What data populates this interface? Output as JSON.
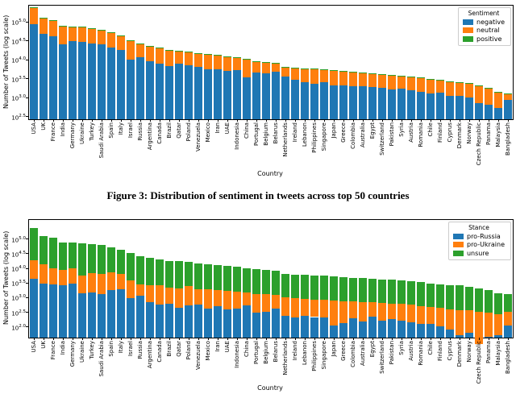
{
  "caption": "Figure 3: Distribution of sentiment in tweets across top 50 countries",
  "colors": {
    "blue": "#1f77b4",
    "orange": "#ff7f0e",
    "green": "#2ca02c"
  },
  "countries": [
    "USA",
    "UK",
    "France",
    "India",
    "Germany",
    "Ukraine",
    "Turkey",
    "Saudi Arabia",
    "Spain",
    "Italy",
    "Israel",
    "Russia",
    "Argentina",
    "Canada",
    "Brazil",
    "Qatar",
    "Poland",
    "Venezuela",
    "Mexico",
    "Iran",
    "UAE",
    "Indonesia",
    "China",
    "Portugal",
    "Belgium",
    "Belarus",
    "Netherlands",
    "Ireland",
    "Lebanon",
    "Philippines",
    "Singapore",
    "Japan",
    "Greece",
    "Colombia",
    "Australia",
    "Egypt",
    "Switzerland",
    "Pakistan",
    "Syria",
    "Austria",
    "Romania",
    "Chile",
    "Finland",
    "Cyprus",
    "Denmark",
    "Norway",
    "Czech Republic",
    "Panama",
    "Malaysia",
    "Bangladesh"
  ],
  "chart_data": [
    {
      "type": "bar",
      "stacked": true,
      "yscale": "log",
      "xlabel": "Country",
      "ylabel": "Number of Tweets (log scale)",
      "legend_title": "Sentiment",
      "legend_position": "upper right",
      "grid": false,
      "ylim_log10": [
        2.42,
        5.42
      ],
      "yticks_log10": [
        5.0,
        4.5,
        4.0,
        3.5,
        3.0,
        2.5
      ],
      "categories": [
        "USA",
        "UK",
        "France",
        "India",
        "Germany",
        "Ukraine",
        "Turkey",
        "Saudi Arabia",
        "Spain",
        "Italy",
        "Israel",
        "Russia",
        "Argentina",
        "Canada",
        "Brazil",
        "Qatar",
        "Poland",
        "Venezuela",
        "Mexico",
        "Iran",
        "UAE",
        "Indonesia",
        "China",
        "Portugal",
        "Belgium",
        "Belarus",
        "Netherlands",
        "Ireland",
        "Lebanon",
        "Philippines",
        "Singapore",
        "Japan",
        "Greece",
        "Colombia",
        "Australia",
        "Egypt",
        "Switzerland",
        "Pakistan",
        "Syria",
        "Austria",
        "Romania",
        "Chile",
        "Finland",
        "Cyprus",
        "Denmark",
        "Norway",
        "Czech Republic",
        "Panama",
        "Malaysia",
        "Bangladesh"
      ],
      "series": [
        {
          "name": "negative",
          "color": "#1f77b4",
          "values": [
            85000,
            47000,
            40000,
            24500,
            31000,
            29000,
            26000,
            25000,
            21000,
            18000,
            10000,
            11500,
            8900,
            7600,
            6600,
            7800,
            6900,
            6300,
            5600,
            5600,
            4900,
            5100,
            3300,
            4400,
            4200,
            4700,
            3600,
            2900,
            2500,
            2300,
            2500,
            2100,
            2100,
            2000,
            1950,
            1850,
            1750,
            1600,
            1700,
            1500,
            1400,
            1260,
            1300,
            1100,
            1100,
            1000,
            700,
            630,
            520,
            850
          ]
        },
        {
          "name": "neutral",
          "color": "#ff7f0e",
          "values": [
            150000,
            76500,
            64900,
            50000,
            39600,
            40600,
            38700,
            33800,
            30000,
            24100,
            21400,
            14000,
            13050,
            12000,
            10840,
            8870,
            8590,
            7910,
            7630,
            7040,
            6570,
            6070,
            6500,
            4320,
            4130,
            3040,
            2480,
            2960,
            3180,
            3180,
            2790,
            2990,
            2800,
            2600,
            2460,
            2360,
            2270,
            2220,
            1930,
            1930,
            1830,
            1680,
            1440,
            1450,
            1350,
            1250,
            1260,
            1110,
            850,
            380
          ]
        },
        {
          "name": "positive",
          "color": "#2ca02c",
          "values": [
            5000,
            2500,
            2100,
            1500,
            1400,
            1400,
            1300,
            1200,
            1000,
            900,
            600,
            500,
            450,
            400,
            360,
            330,
            310,
            290,
            270,
            260,
            230,
            230,
            200,
            180,
            170,
            160,
            120,
            140,
            120,
            120,
            110,
            110,
            100,
            100,
            90,
            90,
            80,
            80,
            70,
            70,
            70,
            60,
            60,
            50,
            50,
            50,
            40,
            40,
            30,
            30
          ]
        }
      ]
    },
    {
      "type": "bar",
      "stacked": true,
      "yscale": "log",
      "xlabel": "Country",
      "ylabel": "Number of Tweets (log scale)",
      "legend_title": "Stance",
      "legend_position": "upper right",
      "grid": false,
      "ylim_log10": [
        1.62,
        5.64
      ],
      "yticks_log10": [
        5.0,
        4.5,
        4.0,
        3.5,
        3.0,
        2.5,
        2.0
      ],
      "categories": [
        "USA",
        "UK",
        "France",
        "India",
        "Germany",
        "Ukraine",
        "Turkey",
        "Saudi Arabia",
        "Spain",
        "Italy",
        "Israel",
        "Russia",
        "Argentina",
        "Canada",
        "Brazil",
        "Qatar",
        "Poland",
        "Venezuela",
        "Mexico",
        "Iran",
        "UAE",
        "Indonesia",
        "China",
        "Portugal",
        "Belgium",
        "Belarus",
        "Netherlands",
        "Ireland",
        "Lebanon",
        "Philippines",
        "Singapore",
        "Japan",
        "Greece",
        "Colombia",
        "Australia",
        "Egypt",
        "Switzerland",
        "Pakistan",
        "Syria",
        "Austria",
        "Romania",
        "Chile",
        "Finland",
        "Cyprus",
        "Denmark",
        "Norway",
        "Czech Republic",
        "Panama",
        "Malaysia",
        "Bangladesh"
      ],
      "series": [
        {
          "name": "pro-Russia",
          "color": "#1f77b4",
          "values": [
            4200,
            3000,
            2700,
            2500,
            3000,
            1350,
            1500,
            1300,
            1800,
            1900,
            950,
            1100,
            700,
            550,
            600,
            430,
            520,
            550,
            420,
            480,
            380,
            420,
            520,
            300,
            320,
            420,
            230,
            210,
            230,
            210,
            200,
            110,
            130,
            190,
            150,
            220,
            160,
            180,
            160,
            140,
            120,
            120,
            100,
            80,
            50,
            60,
            25,
            45,
            50,
            110
          ]
        },
        {
          "name": "pro-Ukraine",
          "color": "#ff7f0e",
          "values": [
            14000,
            10200,
            6850,
            6000,
            6500,
            4050,
            5000,
            4800,
            5300,
            4550,
            2850,
            1650,
            1900,
            2000,
            1500,
            1600,
            1900,
            1300,
            1400,
            1250,
            1300,
            1100,
            950,
            1000,
            950,
            750,
            750,
            700,
            620,
            620,
            600,
            650,
            580,
            520,
            540,
            450,
            470,
            430,
            430,
            420,
            390,
            350,
            340,
            310,
            320,
            300,
            290,
            260,
            220,
            210
          ]
        },
        {
          "name": "unsure",
          "color": "#2ca02c",
          "values": [
            221800,
            112800,
            97450,
            67500,
            62500,
            65600,
            59500,
            53900,
            44900,
            36550,
            28200,
            23250,
            19800,
            17450,
            15700,
            14970,
            13380,
            12650,
            11680,
            11170,
            10020,
            9880,
            8530,
            7600,
            7230,
            6730,
            5220,
            5090,
            4950,
            4770,
            4600,
            4440,
            4290,
            3990,
            3810,
            3630,
            3470,
            3290,
            3110,
            2940,
            2790,
            2530,
            2360,
            2210,
            2130,
            1940,
            1685,
            1475,
            1130,
            940
          ]
        }
      ]
    }
  ]
}
